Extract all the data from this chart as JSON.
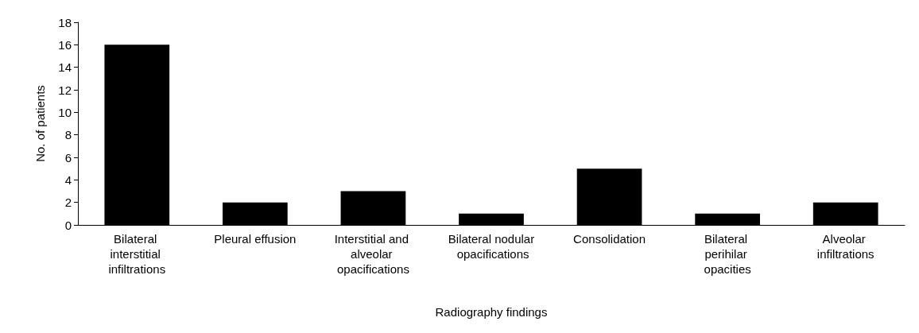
{
  "chart_data": {
    "type": "bar",
    "xlabel": "Radiography findings",
    "ylabel": "No. of patients",
    "categories": [
      "Bilateral interstitial infiltrations",
      "Pleural effusion",
      "Interstitial and alveolar opacifications",
      "Bilateral nodular opacifications",
      "Consolidation",
      "Bilateral perihilar opacities",
      "Alveolar infiltrations"
    ],
    "values": [
      16,
      2,
      3,
      1,
      5,
      1,
      2
    ],
    "color": "#000000",
    "ylim": [
      0,
      18
    ],
    "yticks": [
      0,
      2,
      4,
      6,
      8,
      10,
      12,
      14,
      16,
      18
    ],
    "grid": false
  }
}
